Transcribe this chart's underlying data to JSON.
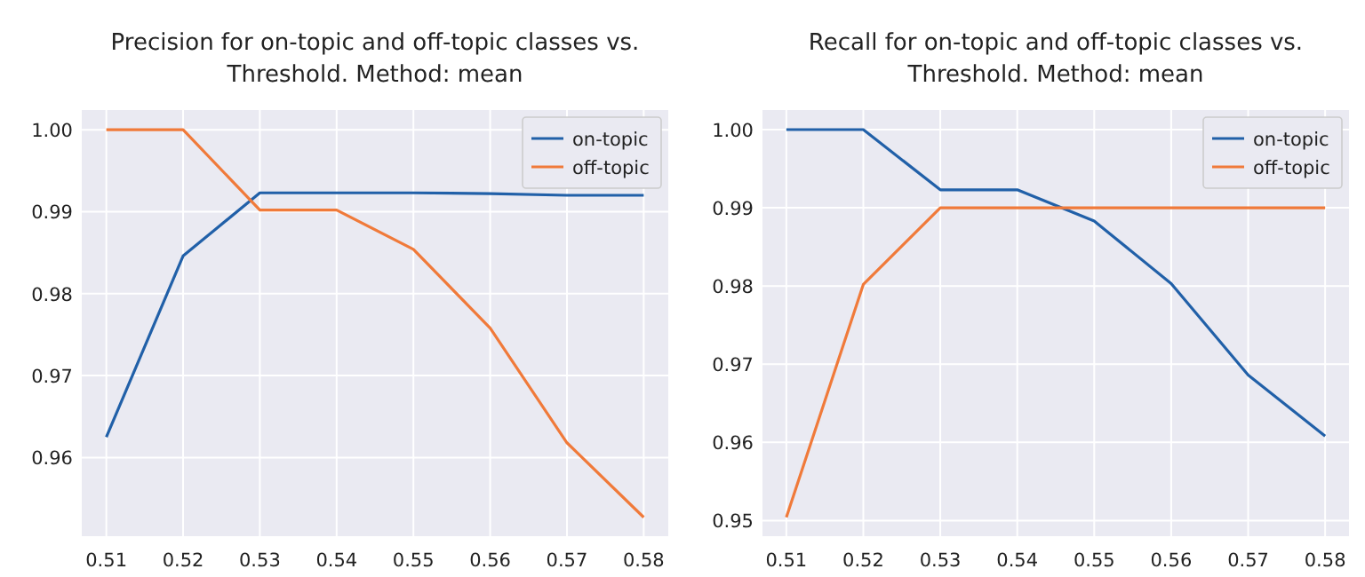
{
  "chart_data": [
    {
      "type": "line",
      "title": "Precision for on-topic and off-topic classes vs. Threshold. Method: mean",
      "x": [
        0.51,
        0.52,
        0.53,
        0.54,
        0.55,
        0.56,
        0.57,
        0.58
      ],
      "series": [
        {
          "name": "on-topic",
          "color": "#2160a8",
          "values": [
            0.9625,
            0.9846,
            0.9923,
            0.9923,
            0.9923,
            0.9922,
            0.992,
            0.992
          ]
        },
        {
          "name": "off-topic",
          "color": "#f07a3a",
          "values": [
            1.0,
            1.0,
            0.9902,
            0.9902,
            0.9854,
            0.9758,
            0.9618,
            0.9527
          ]
        }
      ],
      "xlim": [
        0.5068,
        0.5832
      ],
      "ylim": [
        0.9504,
        1.0024
      ],
      "xticks": [
        0.51,
        0.52,
        0.53,
        0.54,
        0.55,
        0.56,
        0.57,
        0.58
      ],
      "yticks": [
        0.96,
        0.97,
        0.98,
        0.99,
        {
          "value": 1,
          "label": "1.00"
        }
      ],
      "grid": true,
      "legend": "top right"
    },
    {
      "type": "line",
      "title": "Recall for on-topic and off-topic classes vs. Threshold. Method: mean",
      "x": [
        0.51,
        0.52,
        0.53,
        0.54,
        0.55,
        0.56,
        0.57,
        0.58
      ],
      "series": [
        {
          "name": "on-topic",
          "color": "#2160a8",
          "values": [
            1.0,
            1.0,
            0.9923,
            0.9923,
            0.9883,
            0.9803,
            0.9686,
            0.9608
          ]
        },
        {
          "name": "off-topic",
          "color": "#f07a3a",
          "values": [
            0.9504,
            0.9802,
            0.99,
            0.99,
            0.99,
            0.99,
            0.99,
            0.99
          ]
        }
      ],
      "xlim": [
        0.5069,
        0.5831
      ],
      "ylim": [
        0.948,
        1.0025
      ],
      "xticks": [
        0.51,
        0.52,
        0.53,
        0.54,
        0.55,
        0.56,
        0.57,
        0.58
      ],
      "yticks": [
        0.95,
        0.96,
        0.97,
        0.98,
        0.99,
        {
          "value": 1,
          "label": "1.00"
        }
      ],
      "grid": true,
      "legend": "top right"
    }
  ]
}
